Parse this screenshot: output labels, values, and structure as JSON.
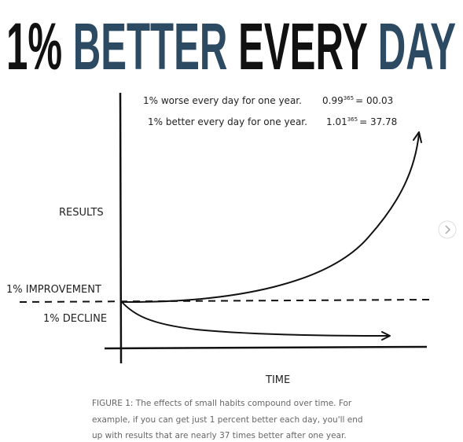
{
  "header": {
    "title_parts": [
      "1%",
      "BETTER",
      "EVERY",
      "DAY"
    ]
  },
  "diagram": {
    "annotations": [
      {
        "text": "1% worse every day for one year.",
        "base": "0.99",
        "exponent": "365",
        "result": "= 00.03"
      },
      {
        "text": "1% better every day for one year.",
        "base": "1.01",
        "exponent": "365",
        "result": "= 37.78"
      }
    ],
    "y_label": "RESULTS",
    "improvement_label": "1% IMPROVEMENT",
    "decline_label": "1% DECLINE",
    "x_label": "TIME"
  },
  "caption": {
    "lines": [
      "FIGURE 1: The effects of small habits compound over time. For",
      "example, if you can get just 1 percent better each day, you'll end",
      "up with results that are nearly 37 times better after one year."
    ]
  }
}
